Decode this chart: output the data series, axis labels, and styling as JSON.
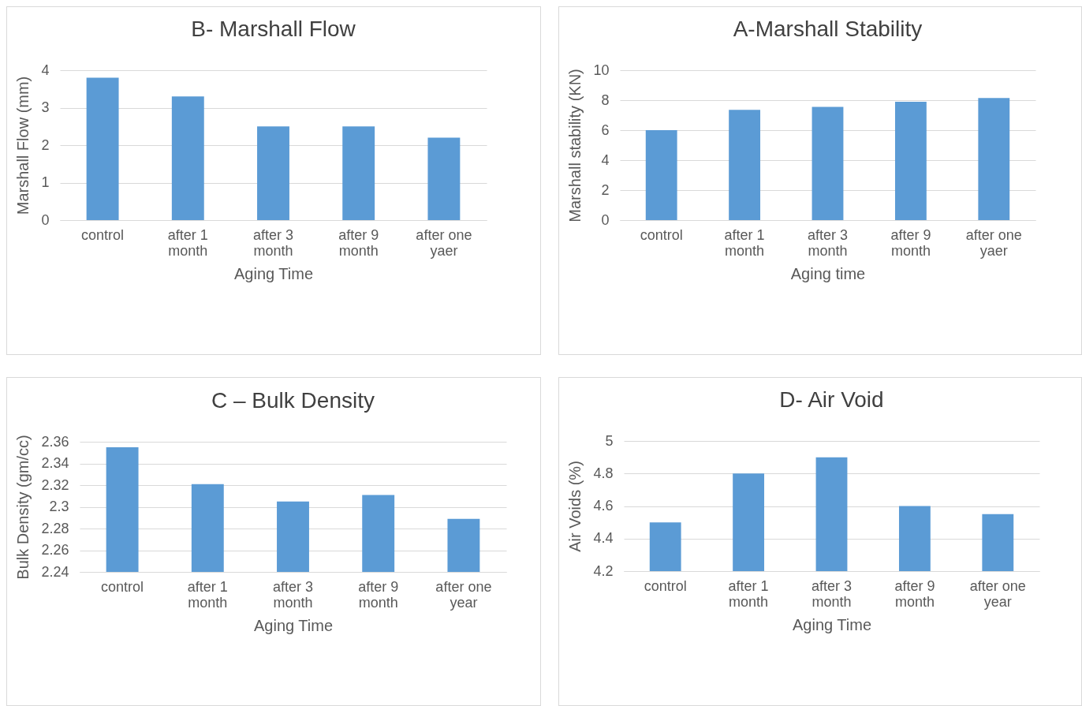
{
  "chart_data": [
    {
      "type": "bar",
      "title": "B- Marshall Flow",
      "xlabel": "Aging Time",
      "ylabel": "Marshall Flow (mm)",
      "categories": [
        "control",
        "after 1 month",
        "after 3 month",
        "after 9 month",
        "after one yaer"
      ],
      "values": [
        3.8,
        3.3,
        2.5,
        2.5,
        2.2
      ],
      "color": "#5b9bd5",
      "ylim": [
        0,
        4
      ],
      "yticks": [
        0,
        1,
        2,
        3,
        4
      ],
      "grid": "y"
    },
    {
      "type": "bar",
      "title": "A-Marshall Stability",
      "xlabel": "Aging time",
      "ylabel": "Marshall stability (KN)",
      "categories": [
        "control",
        "after 1 month",
        "after 3 month",
        "after 9 month",
        "after one yaer"
      ],
      "values": [
        6.0,
        7.35,
        7.55,
        7.9,
        8.15
      ],
      "color": "#5b9bd5",
      "ylim": [
        0,
        10
      ],
      "yticks": [
        0,
        2,
        4,
        6,
        8,
        10
      ],
      "grid": "y"
    },
    {
      "type": "bar",
      "title": "C – Bulk Density",
      "xlabel": "Aging Time",
      "ylabel": "Bulk Density (gm/cc)",
      "categories": [
        "control",
        "after 1 month",
        "after 3 month",
        "after 9 month",
        "after one year"
      ],
      "values": [
        2.355,
        2.321,
        2.305,
        2.311,
        2.289
      ],
      "color": "#5b9bd5",
      "ylim": [
        2.24,
        2.36
      ],
      "yticks": [
        2.24,
        2.26,
        2.28,
        2.3,
        2.32,
        2.34,
        2.36
      ],
      "grid": "y"
    },
    {
      "type": "bar",
      "title": "D- Air Void",
      "xlabel": "Aging Time",
      "ylabel": "Air Voids (%)",
      "categories": [
        "control",
        "after 1 month",
        "after 3 month",
        "after 9 month",
        "after one year"
      ],
      "values": [
        4.5,
        4.8,
        4.9,
        4.6,
        4.55
      ],
      "color": "#5b9bd5",
      "ylim": [
        4.2,
        5
      ],
      "yticks": [
        4.2,
        4.4,
        4.6,
        4.8,
        5
      ],
      "grid": "y"
    }
  ]
}
